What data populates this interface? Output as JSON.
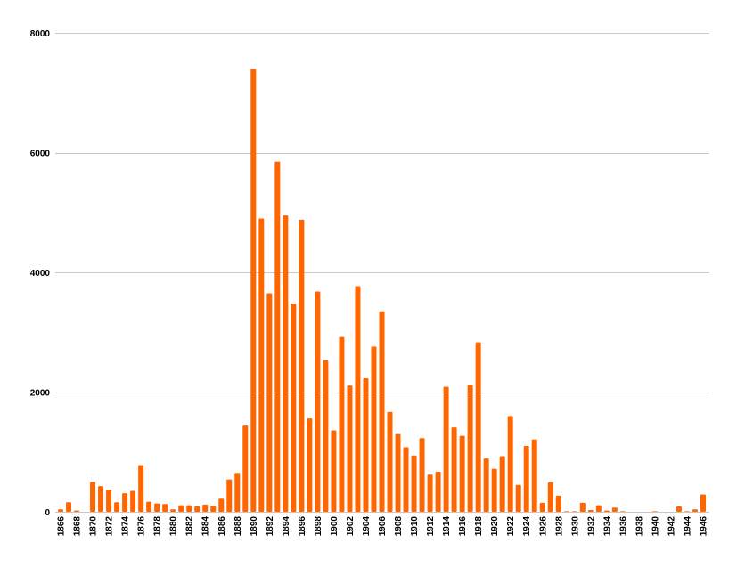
{
  "chart_data": {
    "type": "bar",
    "title": "",
    "xlabel": "",
    "ylabel": "",
    "ylim": [
      0,
      8000
    ],
    "yticks": [
      0,
      2000,
      4000,
      6000,
      8000
    ],
    "ytick_labels": [
      "0",
      "2000",
      "4000",
      "6000",
      "8000"
    ],
    "grid": true,
    "legend": "none",
    "bar_color": "#ff6600",
    "grid_color": "#c8c8c8",
    "categories": [
      1866,
      1867,
      1868,
      1869,
      1870,
      1871,
      1872,
      1873,
      1874,
      1875,
      1876,
      1877,
      1878,
      1879,
      1880,
      1881,
      1882,
      1883,
      1884,
      1885,
      1886,
      1887,
      1888,
      1889,
      1890,
      1891,
      1892,
      1893,
      1894,
      1895,
      1896,
      1897,
      1898,
      1899,
      1900,
      1901,
      1902,
      1903,
      1904,
      1905,
      1906,
      1907,
      1908,
      1909,
      1910,
      1911,
      1912,
      1913,
      1914,
      1915,
      1916,
      1917,
      1918,
      1919,
      1920,
      1921,
      1922,
      1923,
      1924,
      1925,
      1926,
      1927,
      1928,
      1929,
      1930,
      1931,
      1932,
      1933,
      1934,
      1935,
      1936,
      1937,
      1938,
      1939,
      1940,
      1941,
      1942,
      1943,
      1944,
      1945,
      1946
    ],
    "xtick_labels": [
      "1866",
      "1868",
      "1870",
      "1872",
      "1874",
      "1876",
      "1878",
      "1880",
      "1882",
      "1884",
      "1886",
      "1888",
      "1890",
      "1892",
      "1894",
      "1896",
      "1898",
      "1900",
      "1902",
      "1904",
      "1906",
      "1908",
      "1910",
      "1912",
      "1914",
      "1916",
      "1918",
      "1920",
      "1922",
      "1924",
      "1926",
      "1928",
      "1930",
      "1932",
      "1934",
      "1936",
      "1938",
      "1940",
      "1942",
      "1944",
      "1946"
    ],
    "values": [
      40,
      160,
      20,
      0,
      500,
      430,
      370,
      160,
      310,
      350,
      780,
      170,
      140,
      130,
      40,
      110,
      110,
      90,
      120,
      100,
      220,
      540,
      650,
      1440,
      7400,
      4900,
      3650,
      5850,
      4950,
      3480,
      4880,
      1560,
      3680,
      2530,
      1360,
      2920,
      2110,
      3770,
      2230,
      2760,
      3350,
      1670,
      1300,
      1080,
      940,
      1230,
      620,
      670,
      2090,
      1410,
      1270,
      2120,
      2830,
      890,
      720,
      930,
      1600,
      450,
      1100,
      1210,
      150,
      490,
      270,
      10,
      10,
      150,
      30,
      110,
      20,
      70,
      10,
      0,
      0,
      0,
      10,
      0,
      0,
      90,
      10,
      40,
      290
    ]
  }
}
